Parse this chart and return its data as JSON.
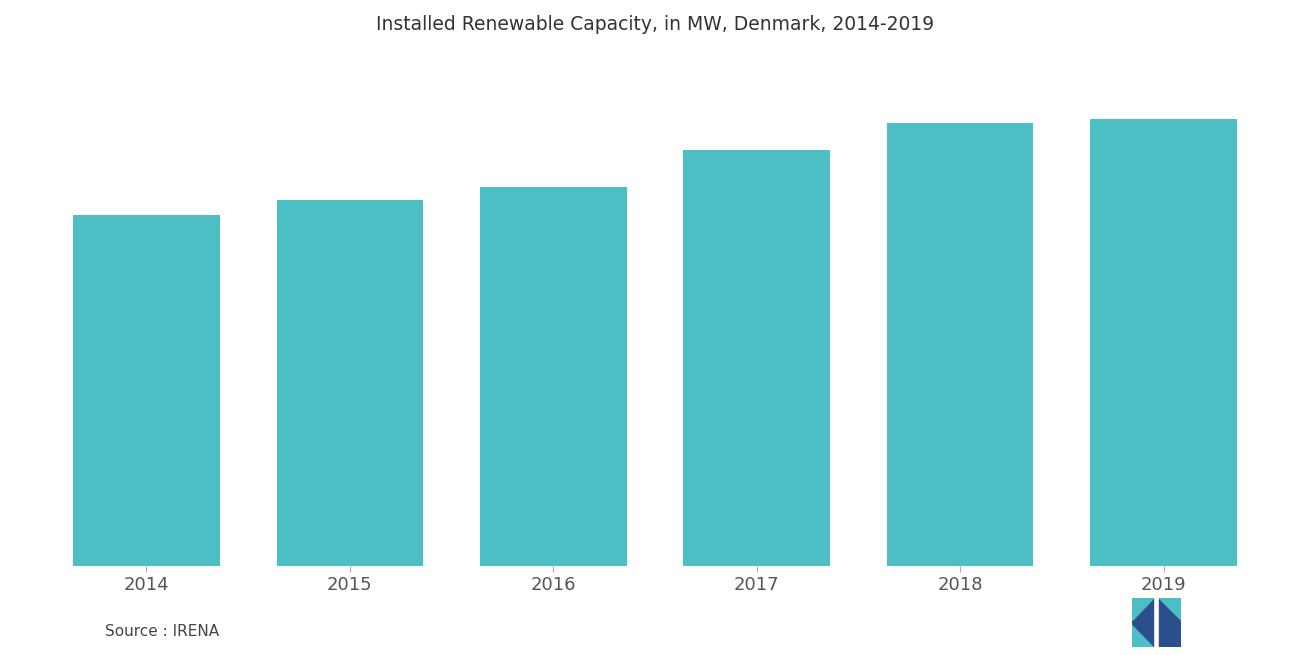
{
  "title": "Installed Renewable Capacity, in MW, Denmark, 2014-2019",
  "categories": [
    "2014",
    "2015",
    "2016",
    "2017",
    "2018",
    "2019"
  ],
  "values": [
    5350,
    5580,
    5780,
    6350,
    6760,
    6830
  ],
  "bar_color": "#4BBFC4",
  "background_color": "#FFFFFF",
  "title_fontsize": 13.5,
  "tick_fontsize": 13,
  "source_text": "Source : IRENA",
  "source_fontsize": 11,
  "ylim": [
    0,
    7800
  ],
  "bar_width": 0.72,
  "tick_color": "#555555",
  "logo_dark": "#2B4E8C",
  "logo_teal": "#4BBFC4"
}
